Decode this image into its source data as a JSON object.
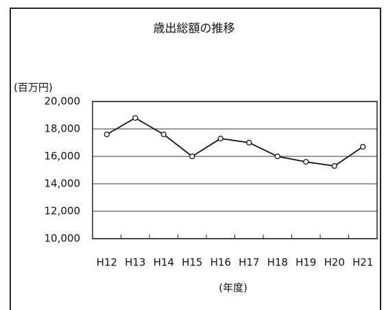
{
  "chart_data": {
    "type": "line",
    "title": "歳出総額の推移",
    "y_label": "(百万円)",
    "x_label": "(年度)",
    "categories": [
      "H12",
      "H13",
      "H14",
      "H15",
      "H16",
      "H17",
      "H18",
      "H19",
      "H20",
      "H21"
    ],
    "values": [
      17600,
      18800,
      17600,
      16000,
      17300,
      17000,
      16000,
      15600,
      15300,
      16700
    ],
    "color": "#111111",
    "ylim": [
      10000,
      20000
    ],
    "yticks": [
      {
        "value": 10000,
        "label": "10,000"
      },
      {
        "value": 12000,
        "label": "12,000"
      },
      {
        "value": 14000,
        "label": "14,000"
      },
      {
        "value": 16000,
        "label": "16,000"
      },
      {
        "value": 18000,
        "label": "18,000"
      },
      {
        "value": 20000,
        "label": "20,000"
      }
    ],
    "grid": true
  }
}
